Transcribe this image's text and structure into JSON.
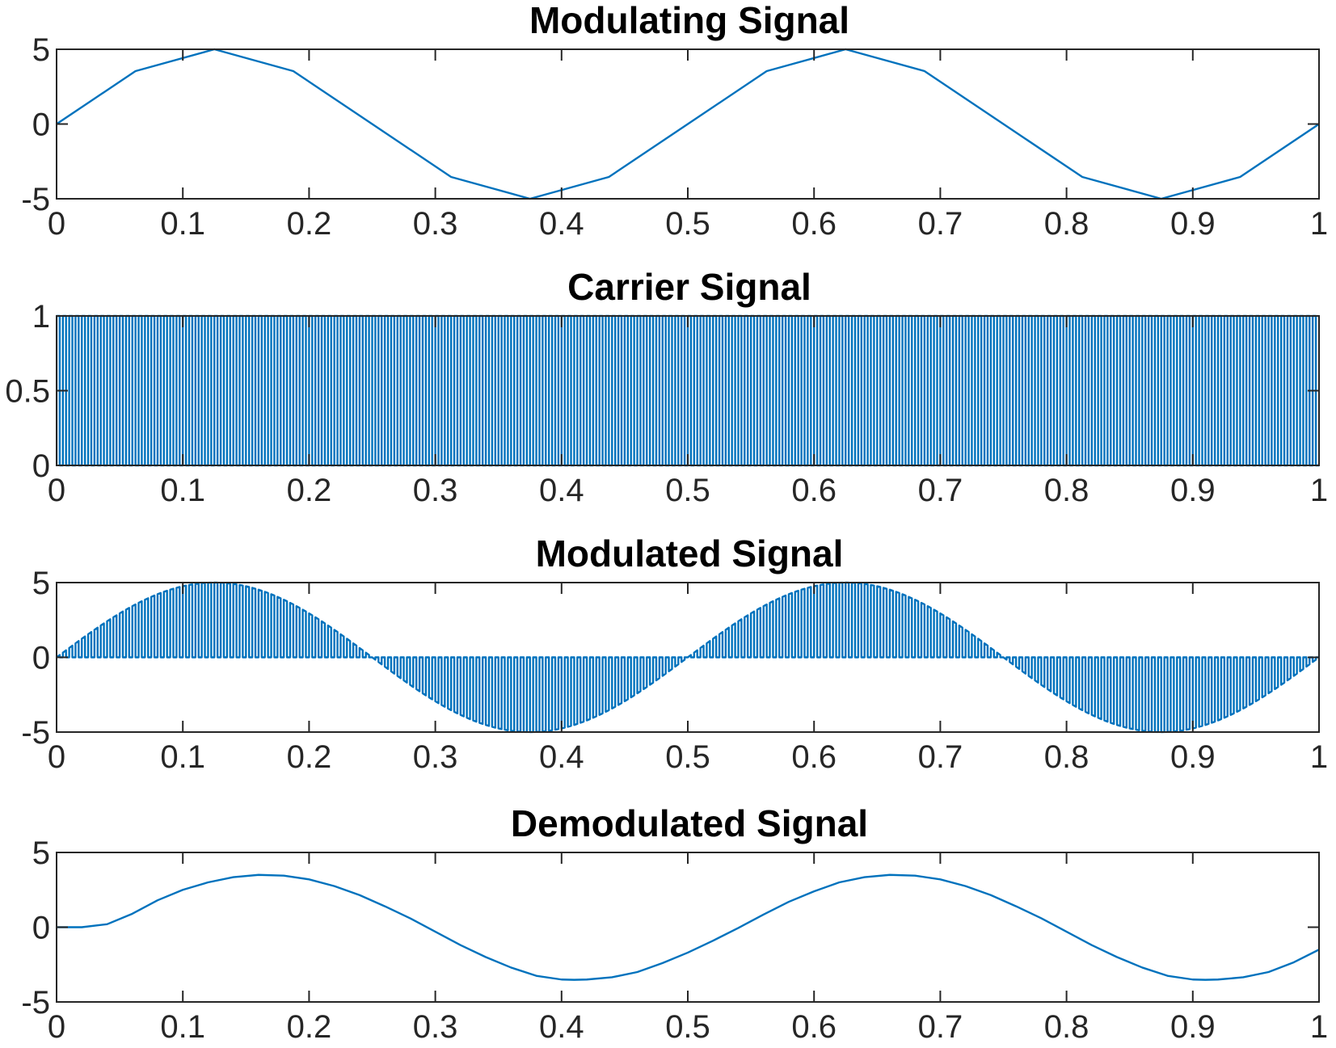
{
  "chart_data": [
    {
      "type": "line",
      "title": "Modulating Signal",
      "xlabel": "",
      "ylabel": "",
      "xlim": [
        0,
        1
      ],
      "ylim": [
        -5,
        5
      ],
      "xticks": [
        0,
        0.1,
        0.2,
        0.3,
        0.4,
        0.5,
        0.6,
        0.7,
        0.8,
        0.9,
        1
      ],
      "xtick_labels": [
        "0",
        "0.1",
        "0.2",
        "0.3",
        "0.4",
        "0.5",
        "0.6",
        "0.7",
        "0.8",
        "0.9",
        "1"
      ],
      "yticks": [
        -5,
        0,
        5
      ],
      "ytick_labels": [
        "-5",
        "0",
        "5"
      ],
      "grid": false,
      "series": [
        {
          "color": "#0072BD",
          "x": [
            0,
            0.0625,
            0.125,
            0.1875,
            0.25,
            0.3125,
            0.375,
            0.4375,
            0.5,
            0.5625,
            0.625,
            0.6875,
            0.75,
            0.8125,
            0.875,
            0.9375,
            1
          ],
          "y": [
            0,
            3.54,
            5,
            3.54,
            0,
            -3.54,
            -5,
            -3.54,
            0,
            3.54,
            5,
            3.54,
            0,
            -3.54,
            -5,
            -3.54,
            0
          ]
        }
      ]
    },
    {
      "type": "line",
      "title": "Carrier Signal",
      "xlabel": "",
      "ylabel": "",
      "xlim": [
        0,
        1
      ],
      "ylim": [
        0,
        1
      ],
      "xticks": [
        0,
        0.1,
        0.2,
        0.3,
        0.4,
        0.5,
        0.6,
        0.7,
        0.8,
        0.9,
        1
      ],
      "xtick_labels": [
        "0",
        "0.1",
        "0.2",
        "0.3",
        "0.4",
        "0.5",
        "0.6",
        "0.7",
        "0.8",
        "0.9",
        "1"
      ],
      "yticks": [
        0,
        0.5,
        1
      ],
      "ytick_labels": [
        "0",
        "0.5",
        "1"
      ],
      "grid": false,
      "series": [
        {
          "color": "#0072BD",
          "waveform": "square",
          "frequency": 200,
          "low": 0,
          "high": 1
        }
      ]
    },
    {
      "type": "line",
      "title": "Modulated Signal",
      "xlabel": "",
      "ylabel": "",
      "xlim": [
        0,
        1
      ],
      "ylim": [
        -5,
        5
      ],
      "xticks": [
        0,
        0.1,
        0.2,
        0.3,
        0.4,
        0.5,
        0.6,
        0.7,
        0.8,
        0.9,
        1
      ],
      "xtick_labels": [
        "0",
        "0.1",
        "0.2",
        "0.3",
        "0.4",
        "0.5",
        "0.6",
        "0.7",
        "0.8",
        "0.9",
        "1"
      ],
      "yticks": [
        -5,
        0,
        5
      ],
      "ytick_labels": [
        "-5",
        "0",
        "5"
      ],
      "grid": false,
      "series": [
        {
          "color": "#0072BD",
          "waveform": "gated-sine",
          "envelope_amplitude": 5,
          "envelope_frequency": 2,
          "carrier_frequency": 200
        }
      ]
    },
    {
      "type": "line",
      "title": "Demodulated Signal",
      "xlabel": "",
      "ylabel": "",
      "xlim": [
        0,
        1
      ],
      "ylim": [
        -5,
        5
      ],
      "xticks": [
        0,
        0.1,
        0.2,
        0.3,
        0.4,
        0.5,
        0.6,
        0.7,
        0.8,
        0.9,
        1
      ],
      "xtick_labels": [
        "0",
        "0.1",
        "0.2",
        "0.3",
        "0.4",
        "0.5",
        "0.6",
        "0.7",
        "0.8",
        "0.9",
        "1"
      ],
      "yticks": [
        -5,
        0,
        5
      ],
      "ytick_labels": [
        "-5",
        "0",
        "5"
      ],
      "grid": false,
      "series": [
        {
          "color": "#0072BD",
          "x": [
            0,
            0.02,
            0.04,
            0.06,
            0.08,
            0.1,
            0.12,
            0.14,
            0.16,
            0.18,
            0.2,
            0.22,
            0.24,
            0.26,
            0.28,
            0.3,
            0.32,
            0.34,
            0.36,
            0.38,
            0.4,
            0.41,
            0.42,
            0.44,
            0.46,
            0.48,
            0.5,
            0.52,
            0.54,
            0.56,
            0.58,
            0.6,
            0.62,
            0.64,
            0.66,
            0.68,
            0.7,
            0.72,
            0.74,
            0.76,
            0.78,
            0.8,
            0.82,
            0.84,
            0.86,
            0.88,
            0.9,
            0.91,
            0.92,
            0.94,
            0.96,
            0.98,
            1
          ],
          "y": [
            0,
            0,
            0.2,
            0.9,
            1.8,
            2.5,
            3.0,
            3.35,
            3.5,
            3.45,
            3.2,
            2.75,
            2.15,
            1.4,
            0.6,
            -0.3,
            -1.2,
            -2.0,
            -2.7,
            -3.25,
            -3.5,
            -3.52,
            -3.5,
            -3.35,
            -3.0,
            -2.4,
            -1.7,
            -0.9,
            -0.05,
            0.85,
            1.7,
            2.4,
            3.0,
            3.35,
            3.5,
            3.45,
            3.2,
            2.75,
            2.15,
            1.4,
            0.6,
            -0.3,
            -1.2,
            -2.0,
            -2.7,
            -3.25,
            -3.5,
            -3.52,
            -3.5,
            -3.35,
            -3.0,
            -2.35,
            -1.5
          ]
        }
      ]
    }
  ]
}
